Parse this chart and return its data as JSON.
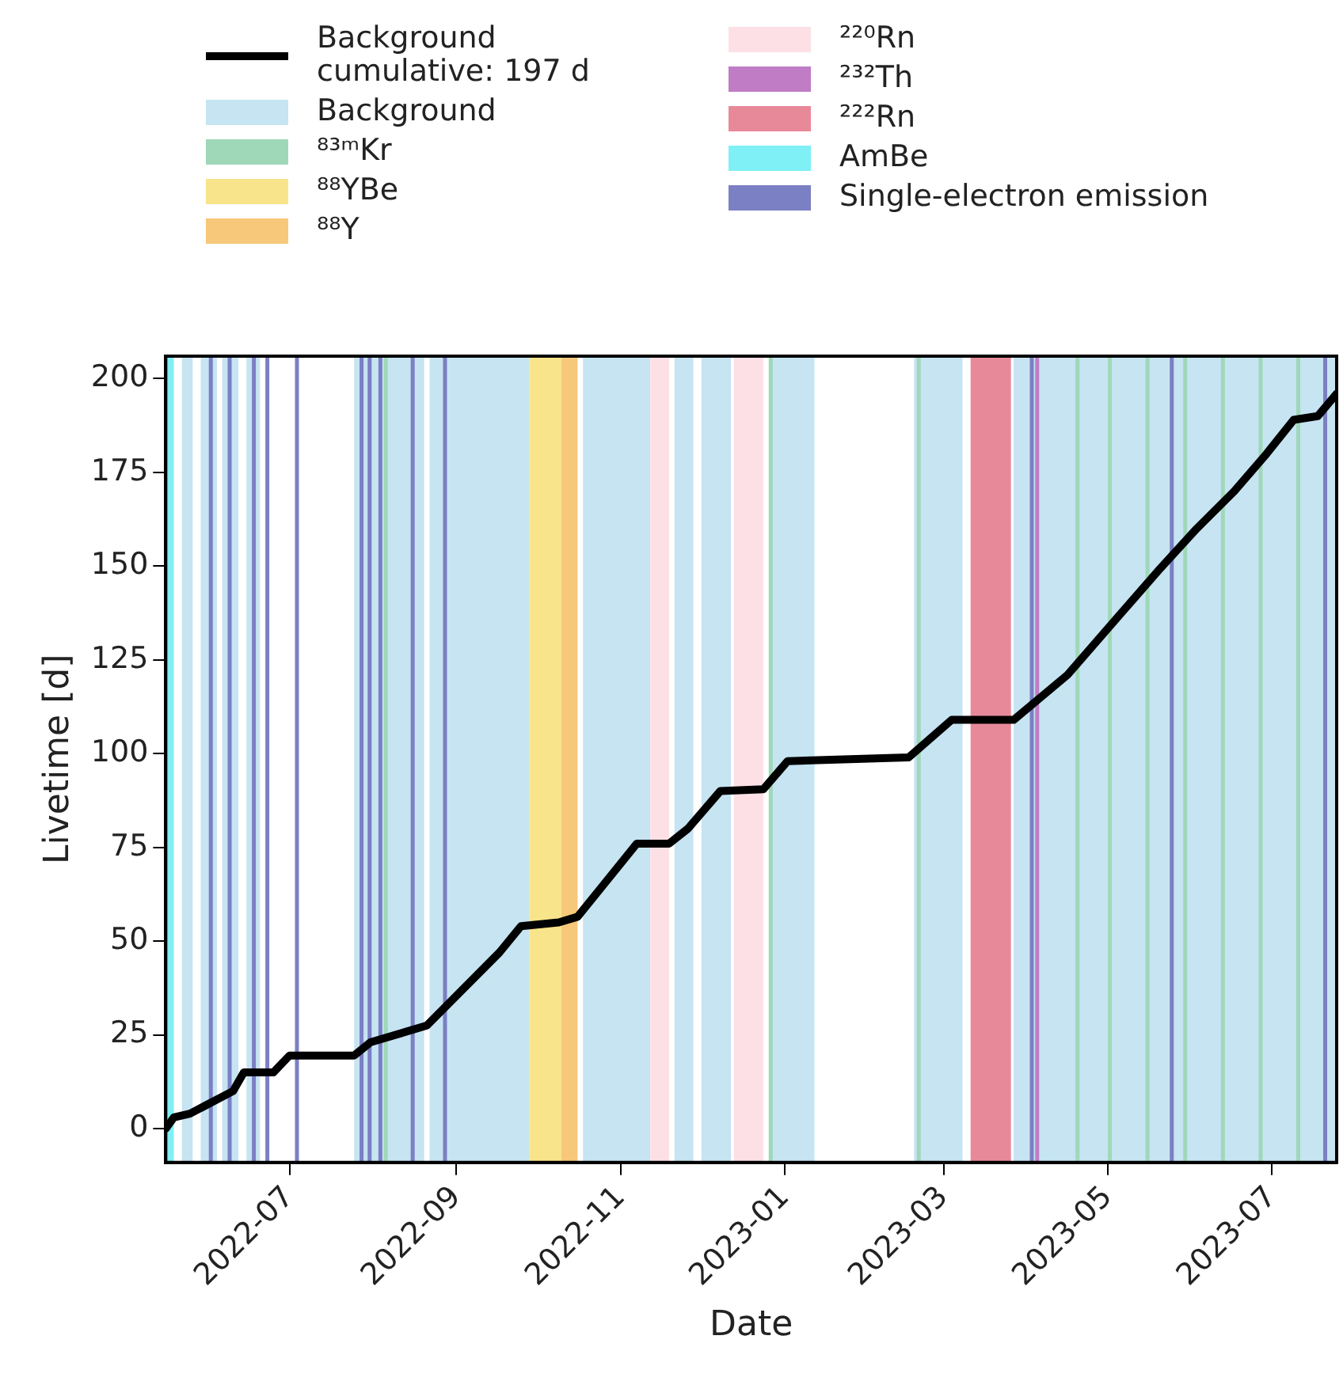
{
  "chart_data": {
    "type": "line",
    "xlabel": "Date",
    "ylabel": "Livetime [d]",
    "x": [
      "2022-05-16",
      "2022-05-19",
      "2022-05-25",
      "2022-06-10",
      "2022-06-14",
      "2022-06-25",
      "2022-07-01",
      "2022-07-25",
      "2022-07-31",
      "2022-08-21",
      "2022-09-17",
      "2022-09-25",
      "2022-10-09",
      "2022-10-16",
      "2022-11-07",
      "2022-11-19",
      "2022-11-26",
      "2022-12-08",
      "2022-12-24",
      "2023-01-02",
      "2023-02-16",
      "2023-03-04",
      "2023-03-27",
      "2023-04-16",
      "2023-05-06",
      "2023-05-20",
      "2023-06-03",
      "2023-06-17",
      "2023-06-29",
      "2023-07-09",
      "2023-07-18",
      "2023-07-25"
    ],
    "series": [
      {
        "name": "Background cumulative: 197 d",
        "color": "#000000",
        "values": [
          0,
          3,
          4,
          10,
          15,
          15,
          19.5,
          19.5,
          23,
          27.5,
          47,
          54,
          55,
          56.5,
          76,
          76,
          80,
          90,
          90.5,
          98,
          99,
          109,
          109,
          121,
          137.5,
          149,
          160,
          170,
          180,
          189,
          190,
          196
        ]
      }
    ],
    "xlim": [
      "2022-05-16",
      "2023-07-25"
    ],
    "xticks": [
      {
        "value": "2022-07-01",
        "label": "2022-07"
      },
      {
        "value": "2022-09-01",
        "label": "2022-09"
      },
      {
        "value": "2022-11-01",
        "label": "2022-11"
      },
      {
        "value": "2023-01-01",
        "label": "2023-01"
      },
      {
        "value": "2023-03-01",
        "label": "2023-03"
      },
      {
        "value": "2023-05-01",
        "label": "2023-05"
      },
      {
        "value": "2023-07-01",
        "label": "2023-07"
      }
    ],
    "ylim": [
      -9,
      206
    ],
    "yticks": [
      0,
      25,
      50,
      75,
      100,
      125,
      150,
      175,
      200
    ],
    "grid": false,
    "legend": "top",
    "marker": "none",
    "line_style": "solid",
    "bands": [
      {
        "axis": "x",
        "from": "2022-05-22",
        "to": "2022-05-26",
        "color": "#c6e4f2",
        "label": "Background"
      },
      {
        "axis": "x",
        "from": "2022-05-29",
        "to": "2022-06-04",
        "color": "#c6e4f2"
      },
      {
        "axis": "x",
        "from": "2022-06-06",
        "to": "2022-06-12",
        "color": "#c6e4f2"
      },
      {
        "axis": "x",
        "from": "2022-06-15",
        "to": "2022-06-20",
        "color": "#c6e4f2"
      },
      {
        "axis": "x",
        "from": "2022-07-25",
        "to": "2022-08-20",
        "color": "#c6e4f2"
      },
      {
        "axis": "x",
        "from": "2022-08-22",
        "to": "2022-09-28",
        "color": "#c6e4f2"
      },
      {
        "axis": "x",
        "from": "2022-10-18",
        "to": "2022-11-12",
        "color": "#c6e4f2"
      },
      {
        "axis": "x",
        "from": "2022-11-21",
        "to": "2022-11-28",
        "color": "#c6e4f2"
      },
      {
        "axis": "x",
        "from": "2022-12-01",
        "to": "2022-12-12",
        "color": "#c6e4f2"
      },
      {
        "axis": "x",
        "from": "2022-12-27",
        "to": "2023-01-12",
        "color": "#c6e4f2"
      },
      {
        "axis": "x",
        "from": "2023-02-18",
        "to": "2023-03-08",
        "color": "#c6e4f2"
      },
      {
        "axis": "x",
        "from": "2023-03-27",
        "to": "2023-07-25",
        "color": "#c6e4f2"
      },
      {
        "axis": "x",
        "from": "2022-08-05",
        "to": "2022-08-06",
        "color": "#9fd8b8",
        "label": "⁸³ᵐKr"
      },
      {
        "axis": "x",
        "from": "2022-12-26",
        "to": "2022-12-27",
        "color": "#9fd8b8"
      },
      {
        "axis": "x",
        "from": "2023-02-19",
        "to": "2023-02-20",
        "color": "#9fd8b8"
      },
      {
        "axis": "x",
        "from": "2023-04-19",
        "to": "2023-04-20",
        "color": "#9fd8b8"
      },
      {
        "axis": "x",
        "from": "2023-05-01",
        "to": "2023-05-02",
        "color": "#9fd8b8"
      },
      {
        "axis": "x",
        "from": "2023-05-15",
        "to": "2023-05-16",
        "color": "#9fd8b8"
      },
      {
        "axis": "x",
        "from": "2023-05-29",
        "to": "2023-05-30",
        "color": "#9fd8b8"
      },
      {
        "axis": "x",
        "from": "2023-06-12",
        "to": "2023-06-13",
        "color": "#9fd8b8"
      },
      {
        "axis": "x",
        "from": "2023-06-26",
        "to": "2023-06-27",
        "color": "#9fd8b8"
      },
      {
        "axis": "x",
        "from": "2023-07-10",
        "to": "2023-07-11",
        "color": "#9fd8b8"
      },
      {
        "axis": "x",
        "from": "2022-09-28",
        "to": "2022-10-10",
        "color": "#f8e48a",
        "label": "⁸⁸YBe"
      },
      {
        "axis": "x",
        "from": "2022-10-10",
        "to": "2022-10-16",
        "color": "#f7c77a",
        "label": "⁸⁸Y"
      },
      {
        "axis": "x",
        "from": "2022-11-12",
        "to": "2022-11-19",
        "color": "#fde0e6",
        "label": "²²⁰Rn"
      },
      {
        "axis": "x",
        "from": "2022-12-13",
        "to": "2022-12-24",
        "color": "#fde0e6"
      },
      {
        "axis": "x",
        "from": "2023-04-04",
        "to": "2023-04-05",
        "color": "#c07cc4",
        "label": "²³²Th"
      },
      {
        "axis": "x",
        "from": "2023-03-11",
        "to": "2023-03-26",
        "color": "#e8899a",
        "label": "²²²Rn"
      },
      {
        "axis": "x",
        "from": "2022-05-16",
        "to": "2022-05-19",
        "color": "#7ff0f5",
        "label": "AmBe"
      },
      {
        "axis": "x",
        "from": "2022-06-01",
        "to": "2022-06-02",
        "color": "#7b7fc4",
        "label": "Single-electron emission"
      },
      {
        "axis": "x",
        "from": "2022-06-08",
        "to": "2022-06-09",
        "color": "#7b7fc4"
      },
      {
        "axis": "x",
        "from": "2022-06-17",
        "to": "2022-06-18",
        "color": "#7b7fc4"
      },
      {
        "axis": "x",
        "from": "2022-06-22",
        "to": "2022-06-23",
        "color": "#7b7fc4"
      },
      {
        "axis": "x",
        "from": "2022-07-03",
        "to": "2022-07-04",
        "color": "#7b7fc4"
      },
      {
        "axis": "x",
        "from": "2022-07-27",
        "to": "2022-07-28",
        "color": "#7b7fc4"
      },
      {
        "axis": "x",
        "from": "2022-07-30",
        "to": "2022-07-31",
        "color": "#7b7fc4"
      },
      {
        "axis": "x",
        "from": "2022-08-03",
        "to": "2022-08-04",
        "color": "#7b7fc4"
      },
      {
        "axis": "x",
        "from": "2022-08-15",
        "to": "2022-08-16",
        "color": "#7b7fc4"
      },
      {
        "axis": "x",
        "from": "2022-08-27",
        "to": "2022-08-28",
        "color": "#7b7fc4"
      },
      {
        "axis": "x",
        "from": "2023-04-02",
        "to": "2023-04-03",
        "color": "#7b7fc4"
      },
      {
        "axis": "x",
        "from": "2023-05-24",
        "to": "2023-05-25",
        "color": "#7b7fc4"
      },
      {
        "axis": "x",
        "from": "2023-07-20",
        "to": "2023-07-21",
        "color": "#7b7fc4"
      }
    ]
  }
}
